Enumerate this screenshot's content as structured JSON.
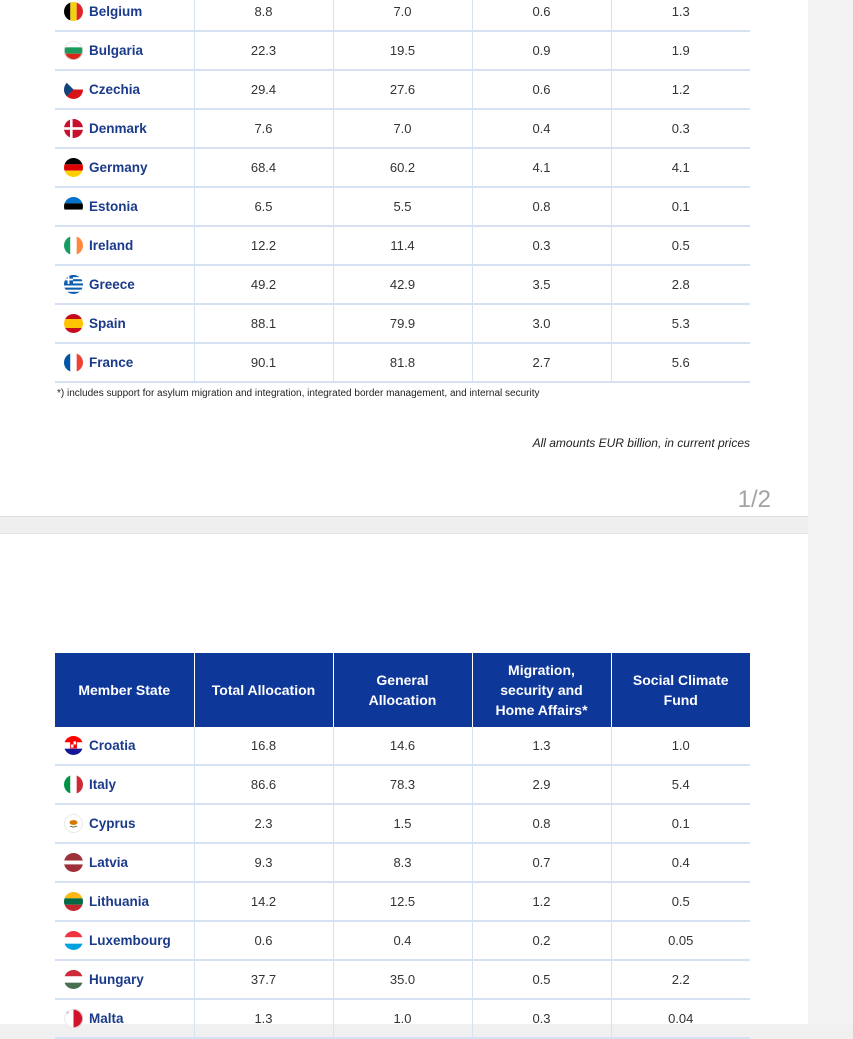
{
  "page1": {
    "rows": [
      {
        "country": "Belgium",
        "flag": "belgium-flag-icon",
        "total": "8.8",
        "general": "7.0",
        "migration": "0.6",
        "scf": "1.3"
      },
      {
        "country": "Bulgaria",
        "flag": "bulgaria-flag-icon",
        "total": "22.3",
        "general": "19.5",
        "migration": "0.9",
        "scf": "1.9"
      },
      {
        "country": "Czechia",
        "flag": "czechia-flag-icon",
        "total": "29.4",
        "general": "27.6",
        "migration": "0.6",
        "scf": "1.2"
      },
      {
        "country": "Denmark",
        "flag": "denmark-flag-icon",
        "total": "7.6",
        "general": "7.0",
        "migration": "0.4",
        "scf": "0.3"
      },
      {
        "country": "Germany",
        "flag": "germany-flag-icon",
        "total": "68.4",
        "general": "60.2",
        "migration": "4.1",
        "scf": "4.1"
      },
      {
        "country": "Estonia",
        "flag": "estonia-flag-icon",
        "total": "6.5",
        "general": "5.5",
        "migration": "0.8",
        "scf": "0.1"
      },
      {
        "country": "Ireland",
        "flag": "ireland-flag-icon",
        "total": "12.2",
        "general": "11.4",
        "migration": "0.3",
        "scf": "0.5"
      },
      {
        "country": "Greece",
        "flag": "greece-flag-icon",
        "total": "49.2",
        "general": "42.9",
        "migration": "3.5",
        "scf": "2.8"
      },
      {
        "country": "Spain",
        "flag": "spain-flag-icon",
        "total": "88.1",
        "general": "79.9",
        "migration": "3.0",
        "scf": "5.3"
      },
      {
        "country": "France",
        "flag": "france-flag-icon",
        "total": "90.1",
        "general": "81.8",
        "migration": "2.7",
        "scf": "5.6"
      }
    ],
    "footnote": "*) includes support for asylum migration and integration, integrated border management, and internal security",
    "amounts_note": "All amounts EUR billion, in current prices",
    "page_number": "1/2"
  },
  "page2": {
    "headers": {
      "member_state": "Member State",
      "total": "Total Allocation",
      "general": "General Allocation",
      "migration": "Migration, security and Home Affairs*",
      "scf": "Social Climate Fund"
    },
    "rows": [
      {
        "country": "Croatia",
        "flag": "croatia-flag-icon",
        "total": "16.8",
        "general": "14.6",
        "migration": "1.3",
        "scf": "1.0"
      },
      {
        "country": "Italy",
        "flag": "italy-flag-icon",
        "total": "86.6",
        "general": "78.3",
        "migration": "2.9",
        "scf": "5.4"
      },
      {
        "country": "Cyprus",
        "flag": "cyprus-flag-icon",
        "total": "2.3",
        "general": "1.5",
        "migration": "0.8",
        "scf": "0.1"
      },
      {
        "country": "Latvia",
        "flag": "latvia-flag-icon",
        "total": "9.3",
        "general": "8.3",
        "migration": "0.7",
        "scf": "0.4"
      },
      {
        "country": "Lithuania",
        "flag": "lithuania-flag-icon",
        "total": "14.2",
        "general": "12.5",
        "migration": "1.2",
        "scf": "0.5"
      },
      {
        "country": "Luxembourg",
        "flag": "luxembourg-flag-icon",
        "total": "0.6",
        "general": "0.4",
        "migration": "0.2",
        "scf": "0.05"
      },
      {
        "country": "Hungary",
        "flag": "hungary-flag-icon",
        "total": "37.7",
        "general": "35.0",
        "migration": "0.5",
        "scf": "2.2"
      },
      {
        "country": "Malta",
        "flag": "malta-flag-icon",
        "total": "1.3",
        "general": "1.0",
        "migration": "0.3",
        "scf": "0.04"
      }
    ]
  }
}
